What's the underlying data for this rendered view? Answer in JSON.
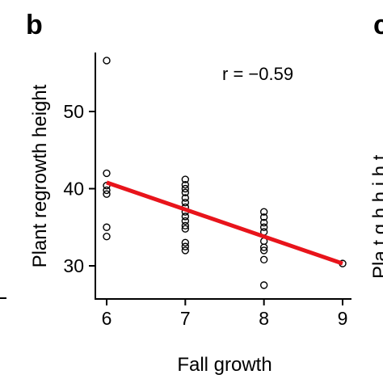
{
  "panel_label": "b",
  "neighbor_panel_label": "c",
  "neighbor_partial_ylabel": "Pla  t   g  h  h  i  h t",
  "chart_data": {
    "type": "scatter",
    "title": "",
    "xlabel": "Fall growth",
    "ylabel": "Plant regrowth height",
    "xlim": [
      5.85,
      9.15
    ],
    "ylim": [
      26.0,
      58.0
    ],
    "xticks": [
      6,
      7,
      8,
      9
    ],
    "yticks": [
      30,
      40,
      50
    ],
    "xtick_labels": [
      "6",
      "7",
      "8",
      "9"
    ],
    "ytick_labels": [
      "30",
      "40",
      "50"
    ],
    "grid": false,
    "legend": "none",
    "annotation": "r = −0.59",
    "point_color": "#000000",
    "fit_line_color": "#e8141b",
    "points": [
      {
        "x": 6,
        "y": 56.6
      },
      {
        "x": 6,
        "y": 42.0
      },
      {
        "x": 6,
        "y": 40.4
      },
      {
        "x": 6,
        "y": 39.8
      },
      {
        "x": 6,
        "y": 39.3
      },
      {
        "x": 6,
        "y": 35.0
      },
      {
        "x": 6,
        "y": 33.8
      },
      {
        "x": 7,
        "y": 41.2
      },
      {
        "x": 7,
        "y": 40.5
      },
      {
        "x": 7,
        "y": 40.0
      },
      {
        "x": 7,
        "y": 39.5
      },
      {
        "x": 7,
        "y": 38.8
      },
      {
        "x": 7,
        "y": 38.2
      },
      {
        "x": 7,
        "y": 37.6
      },
      {
        "x": 7,
        "y": 37.0
      },
      {
        "x": 7,
        "y": 36.4
      },
      {
        "x": 7,
        "y": 35.8
      },
      {
        "x": 7,
        "y": 35.2
      },
      {
        "x": 7,
        "y": 34.8
      },
      {
        "x": 7,
        "y": 33.0
      },
      {
        "x": 7,
        "y": 32.5
      },
      {
        "x": 7,
        "y": 32.0
      },
      {
        "x": 8,
        "y": 37.0
      },
      {
        "x": 8,
        "y": 36.3
      },
      {
        "x": 8,
        "y": 35.6
      },
      {
        "x": 8,
        "y": 35.0
      },
      {
        "x": 8,
        "y": 34.4
      },
      {
        "x": 8,
        "y": 33.2
      },
      {
        "x": 8,
        "y": 32.4
      },
      {
        "x": 8,
        "y": 32.0
      },
      {
        "x": 8,
        "y": 30.8
      },
      {
        "x": 8,
        "y": 27.5
      },
      {
        "x": 9,
        "y": 30.3
      }
    ],
    "fit_line": {
      "x": [
        6,
        9
      ],
      "y": [
        40.8,
        30.3
      ]
    }
  }
}
